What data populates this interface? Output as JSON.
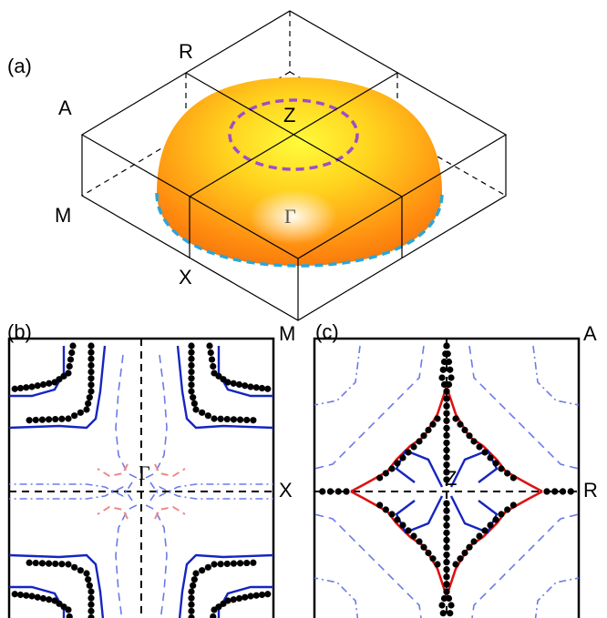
{
  "panel_a": {
    "label": "(a)",
    "points": [
      "R",
      "A",
      "M",
      "X",
      "Z",
      "Γ"
    ]
  },
  "panel_b": {
    "label": "(b)",
    "points": [
      "M",
      "X",
      "Γ"
    ]
  },
  "panel_c": {
    "label": "(c)",
    "points": [
      "A",
      "R",
      "Z"
    ]
  }
}
